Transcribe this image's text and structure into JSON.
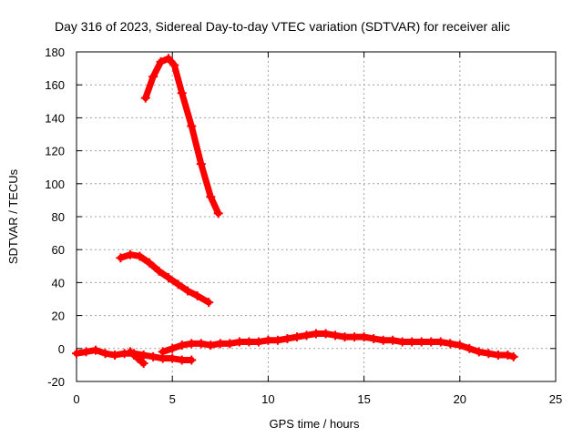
{
  "chart_data": {
    "type": "scatter",
    "title": "Day 316 of 2023, Sidereal Day-to-day VTEC variation (SDTVAR) for receiver alic",
    "xlabel": "GPS time / hours",
    "ylabel": "SDTVAR / TECUs",
    "xlim": [
      0,
      25
    ],
    "ylim": [
      -20,
      180
    ],
    "xticks": [
      "0",
      "5",
      "10",
      "15",
      "20",
      "25"
    ],
    "yticks": [
      "-20",
      "0",
      "20",
      "40",
      "60",
      "80",
      "100",
      "120",
      "140",
      "160",
      "180"
    ],
    "grid": true,
    "legend": "none",
    "marker_color": "#ff0000",
    "series": [
      {
        "values": [
          [
            3.6,
            152
          ],
          [
            4.0,
            165
          ],
          [
            4.4,
            174
          ],
          [
            4.8,
            176
          ],
          [
            5.1,
            172
          ],
          [
            5.5,
            155
          ],
          [
            6.0,
            135
          ],
          [
            6.5,
            112
          ],
          [
            7.0,
            92
          ],
          [
            7.4,
            82
          ]
        ]
      },
      {
        "values": [
          [
            2.3,
            55
          ],
          [
            2.8,
            57
          ],
          [
            3.3,
            56
          ],
          [
            3.8,
            52
          ],
          [
            4.3,
            47
          ],
          [
            4.8,
            43
          ],
          [
            5.3,
            39
          ],
          [
            5.8,
            35
          ],
          [
            6.3,
            32
          ],
          [
            6.9,
            28
          ]
        ]
      },
      {
        "values": [
          [
            0.0,
            -3
          ],
          [
            0.5,
            -2
          ],
          [
            1.0,
            -1
          ],
          [
            1.5,
            -3
          ],
          [
            2.0,
            -4
          ],
          [
            2.5,
            -3
          ],
          [
            3.0,
            -3
          ],
          [
            3.5,
            -4
          ],
          [
            4.0,
            -5
          ],
          [
            4.5,
            -6
          ],
          [
            5.0,
            -6
          ],
          [
            5.5,
            -7
          ],
          [
            6.0,
            -7
          ]
        ]
      },
      {
        "values": [
          [
            4.5,
            -2
          ],
          [
            5.0,
            0
          ],
          [
            5.5,
            2
          ],
          [
            6.0,
            3
          ],
          [
            6.5,
            3
          ],
          [
            7.0,
            2
          ],
          [
            7.5,
            3
          ],
          [
            8.0,
            3
          ],
          [
            8.5,
            4
          ],
          [
            9.0,
            4
          ],
          [
            9.5,
            4
          ],
          [
            10.0,
            5
          ],
          [
            10.5,
            5
          ],
          [
            11.0,
            6
          ],
          [
            11.5,
            7
          ],
          [
            12.0,
            8
          ],
          [
            12.5,
            9
          ],
          [
            13.0,
            9
          ],
          [
            13.5,
            8
          ],
          [
            14.0,
            7
          ],
          [
            14.5,
            7
          ],
          [
            15.0,
            7
          ],
          [
            15.5,
            6
          ],
          [
            16.0,
            5
          ],
          [
            16.5,
            5
          ],
          [
            17.0,
            4
          ],
          [
            17.5,
            4
          ],
          [
            18.0,
            4
          ],
          [
            18.5,
            4
          ],
          [
            19.0,
            4
          ],
          [
            19.5,
            3
          ],
          [
            20.0,
            2
          ],
          [
            20.5,
            0
          ],
          [
            21.0,
            -2
          ],
          [
            21.5,
            -3
          ],
          [
            22.0,
            -4
          ],
          [
            22.5,
            -4
          ],
          [
            22.8,
            -5
          ]
        ]
      },
      {
        "values": [
          [
            2.8,
            -2
          ],
          [
            3.0,
            -4
          ],
          [
            3.2,
            -6
          ],
          [
            3.4,
            -8
          ],
          [
            3.5,
            -9
          ]
        ]
      }
    ]
  }
}
